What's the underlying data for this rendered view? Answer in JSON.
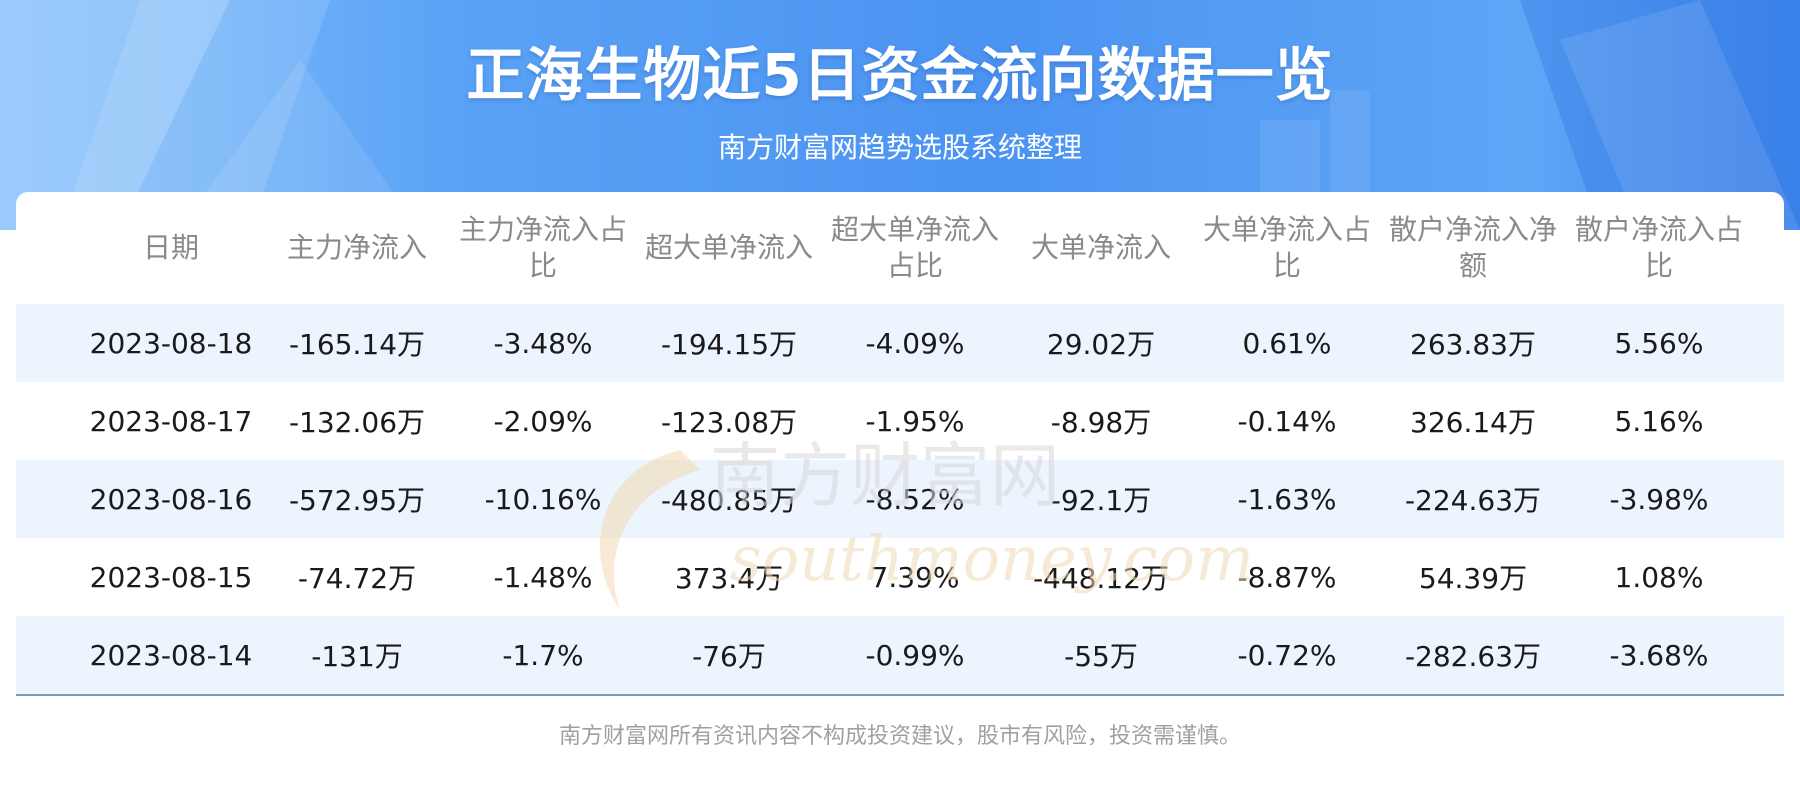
{
  "header": {
    "title": "正海生物近5日资金流向数据一览",
    "subtitle": "南方财富网趋势选股系统整理"
  },
  "table": {
    "columns": [
      "日期",
      "主力净流入",
      "主力净流入占比",
      "超大单净流入",
      "超大单净流入占比",
      "大单净流入",
      "大单净流入占比",
      "散户净流入净额",
      "散户净流入占比"
    ],
    "rows": [
      [
        "2023-08-18",
        "-165.14万",
        "-3.48%",
        "-194.15万",
        "-4.09%",
        "29.02万",
        "0.61%",
        "263.83万",
        "5.56%"
      ],
      [
        "2023-08-17",
        "-132.06万",
        "-2.09%",
        "-123.08万",
        "-1.95%",
        "-8.98万",
        "-0.14%",
        "326.14万",
        "5.16%"
      ],
      [
        "2023-08-16",
        "-572.95万",
        "-10.16%",
        "-480.85万",
        "-8.52%",
        "-92.1万",
        "-1.63%",
        "-224.63万",
        "-3.98%"
      ],
      [
        "2023-08-15",
        "-74.72万",
        "-1.48%",
        "373.4万",
        "7.39%",
        "-448.12万",
        "-8.87%",
        "54.39万",
        "1.08%"
      ],
      [
        "2023-08-14",
        "-131万",
        "-1.7%",
        "-76万",
        "-0.99%",
        "-55万",
        "-0.72%",
        "-282.63万",
        "-3.68%"
      ]
    ]
  },
  "watermark": {
    "text_cn": "南方财富网",
    "text_en": "southmoney.com"
  },
  "footer": {
    "disclaimer": "南方财富网所有资讯内容不构成投资建议，股市有风险，投资需谨慎。"
  },
  "colors": {
    "banner": "#4b93f1",
    "row_stripe": "#ecf4fd",
    "header_text": "#8a8a8a",
    "cell_text": "#1a1a1a"
  }
}
